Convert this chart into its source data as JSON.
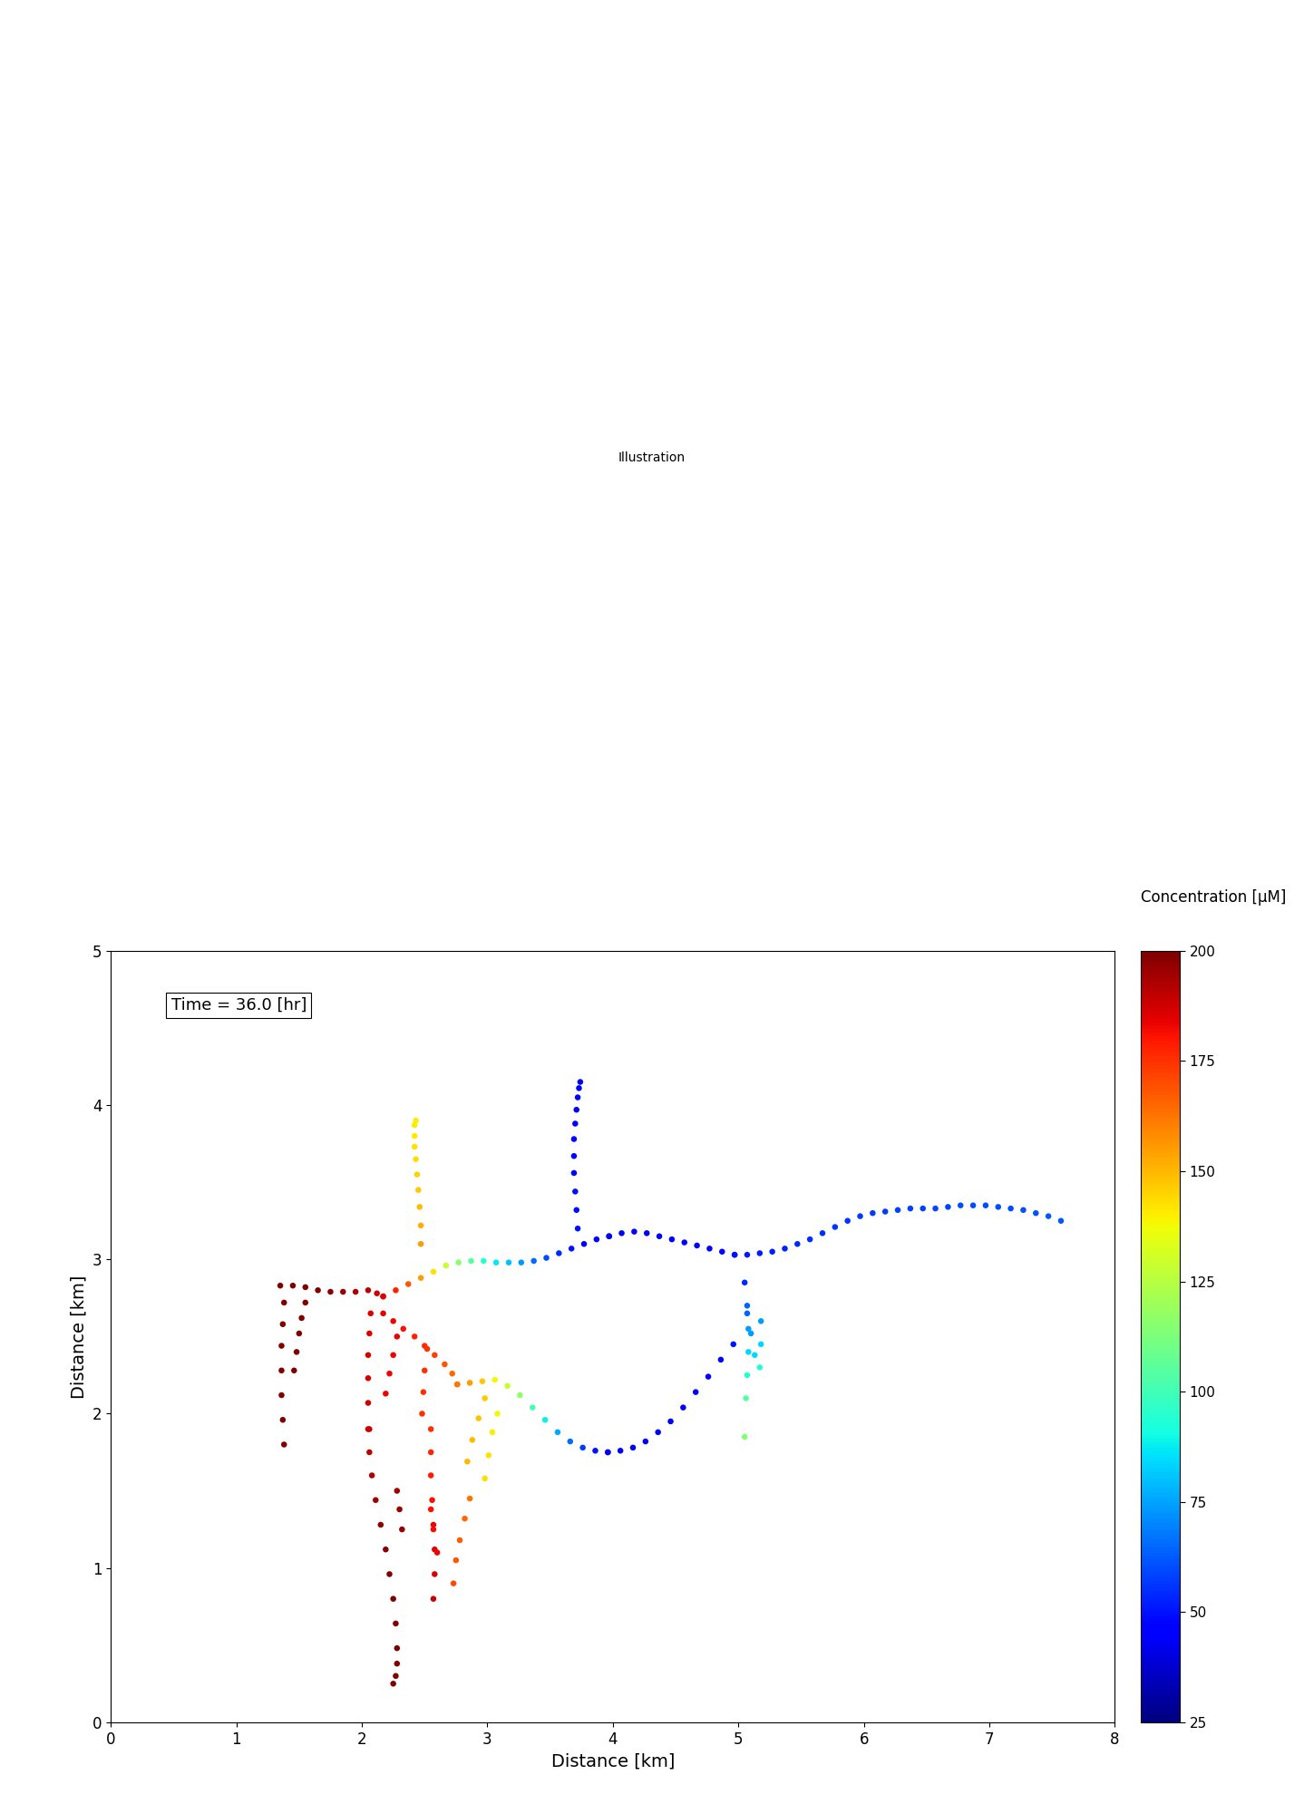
{
  "title_time": "Time = 36.0 [hr]",
  "xlabel": "Distance [km]",
  "ylabel": "Distance [km]",
  "colorbar_label": "Concentration [μM]",
  "xlim": [
    0,
    8
  ],
  "ylim": [
    0,
    5
  ],
  "xticks": [
    0,
    1,
    2,
    3,
    4,
    5,
    6,
    7,
    8
  ],
  "yticks": [
    0,
    1,
    2,
    3,
    4,
    5
  ],
  "cmap": "jet",
  "vmin": 25,
  "vmax": 200,
  "colorbar_ticks": [
    25,
    50,
    75,
    100,
    125,
    150,
    175,
    200
  ],
  "dot_size": 22,
  "streams": [
    {
      "name": "left_horizontal",
      "x": [
        1.35,
        1.45,
        1.55,
        1.65,
        1.75,
        1.85,
        1.95,
        2.05,
        2.12,
        2.17
      ],
      "y": [
        2.83,
        2.83,
        2.82,
        2.8,
        2.79,
        2.79,
        2.79,
        2.8,
        2.78,
        2.76
      ],
      "c": [
        200,
        200,
        200,
        200,
        198,
        196,
        193,
        190,
        188,
        185
      ]
    },
    {
      "name": "left_fork_up",
      "x": [
        1.55,
        1.52,
        1.5,
        1.48,
        1.46
      ],
      "y": [
        2.72,
        2.62,
        2.52,
        2.4,
        2.28
      ],
      "c": [
        200,
        200,
        200,
        200,
        200
      ]
    },
    {
      "name": "left_stem_down",
      "x": [
        1.38,
        1.37,
        1.36,
        1.36,
        1.36,
        1.37,
        1.38
      ],
      "y": [
        2.72,
        2.58,
        2.44,
        2.28,
        2.12,
        1.96,
        1.8
      ],
      "c": [
        200,
        200,
        200,
        200,
        200,
        200,
        200
      ]
    },
    {
      "name": "upper_main_from_left",
      "x": [
        2.17,
        2.27,
        2.37,
        2.47,
        2.57,
        2.67,
        2.77,
        2.87,
        2.97,
        3.07,
        3.17,
        3.27,
        3.37,
        3.47,
        3.57,
        3.67,
        3.77,
        3.87,
        3.97
      ],
      "y": [
        2.76,
        2.8,
        2.84,
        2.88,
        2.92,
        2.96,
        2.98,
        2.99,
        2.99,
        2.98,
        2.98,
        2.98,
        2.99,
        3.01,
        3.04,
        3.07,
        3.1,
        3.13,
        3.15
      ],
      "c": [
        185,
        178,
        168,
        155,
        142,
        128,
        115,
        105,
        95,
        87,
        80,
        73,
        66,
        60,
        54,
        50,
        47,
        45,
        43
      ]
    },
    {
      "name": "upper_main_junction",
      "x": [
        3.97,
        4.07,
        4.17,
        4.27,
        4.37,
        4.47,
        4.57,
        4.67,
        4.77,
        4.87,
        4.97
      ],
      "y": [
        3.15,
        3.17,
        3.18,
        3.17,
        3.15,
        3.13,
        3.11,
        3.09,
        3.07,
        3.05,
        3.03
      ],
      "c": [
        43,
        43,
        43,
        43,
        43,
        44,
        45,
        46,
        47,
        48,
        50
      ]
    },
    {
      "name": "upper_nw_trib",
      "x": [
        2.47,
        2.47,
        2.46,
        2.45,
        2.44,
        2.43,
        2.42,
        2.42,
        2.42,
        2.43
      ],
      "y": [
        3.1,
        3.22,
        3.34,
        3.45,
        3.55,
        3.65,
        3.73,
        3.8,
        3.87,
        3.9
      ],
      "c": [
        155,
        152,
        149,
        147,
        145,
        143,
        142,
        141,
        140,
        140
      ]
    },
    {
      "name": "north_trib",
      "x": [
        3.72,
        3.71,
        3.7,
        3.69,
        3.69,
        3.69,
        3.7,
        3.71,
        3.72,
        3.73,
        3.74
      ],
      "y": [
        3.2,
        3.32,
        3.44,
        3.56,
        3.67,
        3.78,
        3.88,
        3.97,
        4.05,
        4.11,
        4.15
      ],
      "c": [
        50,
        49,
        49,
        48,
        47,
        47,
        46,
        46,
        45,
        45,
        44
      ]
    },
    {
      "name": "mid_left_trib",
      "x": [
        2.17,
        2.25,
        2.33,
        2.42,
        2.5,
        2.58,
        2.66,
        2.72,
        2.76
      ],
      "y": [
        2.65,
        2.6,
        2.55,
        2.5,
        2.44,
        2.38,
        2.32,
        2.26,
        2.19
      ],
      "c": [
        185,
        183,
        181,
        178,
        175,
        172,
        168,
        165,
        162
      ]
    },
    {
      "name": "mid_left_branch_down1",
      "x": [
        2.28,
        2.25,
        2.22,
        2.19
      ],
      "y": [
        2.5,
        2.38,
        2.26,
        2.13
      ],
      "c": [
        183,
        183,
        183,
        183
      ]
    },
    {
      "name": "mid_left_branch_down2",
      "x": [
        2.52,
        2.5,
        2.49,
        2.48
      ],
      "y": [
        2.42,
        2.28,
        2.14,
        2.0
      ],
      "c": [
        175,
        175,
        175,
        175
      ]
    },
    {
      "name": "lower_main",
      "x": [
        2.76,
        2.86,
        2.96,
        3.06,
        3.16,
        3.26,
        3.36,
        3.46,
        3.56,
        3.66,
        3.76,
        3.86,
        3.96
      ],
      "y": [
        2.19,
        2.2,
        2.21,
        2.22,
        2.18,
        2.12,
        2.04,
        1.96,
        1.88,
        1.82,
        1.78,
        1.76,
        1.75
      ],
      "c": [
        162,
        155,
        147,
        138,
        128,
        116,
        102,
        88,
        76,
        66,
        57,
        50,
        44
      ]
    },
    {
      "name": "lower_main_ext",
      "x": [
        3.96,
        4.06,
        4.16,
        4.26,
        4.36,
        4.46,
        4.56,
        4.66,
        4.76,
        4.86,
        4.96
      ],
      "y": [
        1.75,
        1.76,
        1.78,
        1.82,
        1.88,
        1.95,
        2.04,
        2.14,
        2.24,
        2.35,
        2.45
      ],
      "c": [
        44,
        44,
        44,
        44,
        44,
        44,
        45,
        46,
        47,
        48,
        50
      ]
    },
    {
      "name": "lower_branch1",
      "x": [
        2.98,
        2.93,
        2.88,
        2.84
      ],
      "y": [
        2.1,
        1.97,
        1.83,
        1.69
      ],
      "c": [
        147,
        148,
        149,
        150
      ]
    },
    {
      "name": "lower_branch2",
      "x": [
        3.08,
        3.04,
        3.01,
        2.98
      ],
      "y": [
        2.0,
        1.88,
        1.73,
        1.58
      ],
      "c": [
        138,
        140,
        142,
        143
      ]
    },
    {
      "name": "lower_branch_sw",
      "x": [
        2.86,
        2.82,
        2.78,
        2.75,
        2.73
      ],
      "y": [
        1.45,
        1.32,
        1.18,
        1.05,
        0.9
      ],
      "c": [
        163,
        165,
        167,
        168,
        170
      ]
    },
    {
      "name": "stem_down_left1",
      "x": [
        2.07,
        2.06,
        2.05,
        2.05,
        2.05,
        2.06
      ],
      "y": [
        2.65,
        2.52,
        2.38,
        2.23,
        2.07,
        1.9
      ],
      "c": [
        185,
        185,
        186,
        187,
        188,
        189
      ]
    },
    {
      "name": "bottom_stem1",
      "x": [
        2.05,
        2.06,
        2.08,
        2.11,
        2.15,
        2.19,
        2.22,
        2.25,
        2.27,
        2.28,
        2.28,
        2.27,
        2.25
      ],
      "y": [
        1.9,
        1.75,
        1.6,
        1.44,
        1.28,
        1.12,
        0.96,
        0.8,
        0.64,
        0.48,
        0.38,
        0.3,
        0.25
      ],
      "c": [
        189,
        191,
        193,
        195,
        197,
        199,
        200,
        200,
        200,
        200,
        200,
        200,
        200
      ]
    },
    {
      "name": "bottom_stem2",
      "x": [
        2.55,
        2.55,
        2.55,
        2.56,
        2.57,
        2.58,
        2.58,
        2.57
      ],
      "y": [
        1.9,
        1.75,
        1.6,
        1.44,
        1.28,
        1.12,
        0.96,
        0.8
      ],
      "c": [
        175,
        177,
        179,
        181,
        183,
        185,
        187,
        189
      ]
    },
    {
      "name": "bottom_branch1",
      "x": [
        2.28,
        2.3,
        2.32
      ],
      "y": [
        1.5,
        1.38,
        1.25
      ],
      "c": [
        195,
        196,
        197
      ]
    },
    {
      "name": "bottom_branch2",
      "x": [
        2.55,
        2.57,
        2.6
      ],
      "y": [
        1.38,
        1.25,
        1.1
      ],
      "c": [
        181,
        182,
        183
      ]
    },
    {
      "name": "right_of_junction",
      "x": [
        4.97,
        5.07,
        5.17,
        5.27,
        5.37,
        5.47,
        5.57,
        5.67,
        5.77,
        5.87,
        5.97,
        6.07,
        6.17,
        6.27,
        6.37,
        6.47,
        6.57,
        6.67,
        6.77,
        6.87,
        6.97,
        7.07,
        7.17,
        7.27,
        7.37,
        7.47,
        7.57
      ],
      "y": [
        3.03,
        3.03,
        3.04,
        3.05,
        3.07,
        3.1,
        3.13,
        3.17,
        3.21,
        3.25,
        3.28,
        3.3,
        3.31,
        3.32,
        3.33,
        3.33,
        3.33,
        3.34,
        3.35,
        3.35,
        3.35,
        3.34,
        3.33,
        3.32,
        3.3,
        3.28,
        3.25
      ],
      "c": [
        50,
        51,
        51,
        52,
        53,
        54,
        55,
        55,
        56,
        56,
        57,
        57,
        57,
        58,
        58,
        58,
        59,
        59,
        60,
        60,
        60,
        60,
        60,
        61,
        61,
        62,
        62
      ]
    },
    {
      "name": "right_lower_branch1",
      "x": [
        5.05,
        5.07,
        5.08,
        5.08,
        5.07,
        5.06,
        5.05
      ],
      "y": [
        2.85,
        2.7,
        2.55,
        2.4,
        2.25,
        2.1,
        1.85
      ],
      "c": [
        54,
        64,
        74,
        84,
        94,
        104,
        114
      ]
    },
    {
      "name": "right_lower_branch2",
      "x": [
        5.07,
        5.1,
        5.13
      ],
      "y": [
        2.65,
        2.52,
        2.38
      ],
      "c": [
        64,
        74,
        84
      ]
    },
    {
      "name": "right_lower_single",
      "x": [
        5.18,
        5.18,
        5.17
      ],
      "y": [
        2.6,
        2.45,
        2.3
      ],
      "c": [
        74,
        84,
        94
      ]
    }
  ]
}
